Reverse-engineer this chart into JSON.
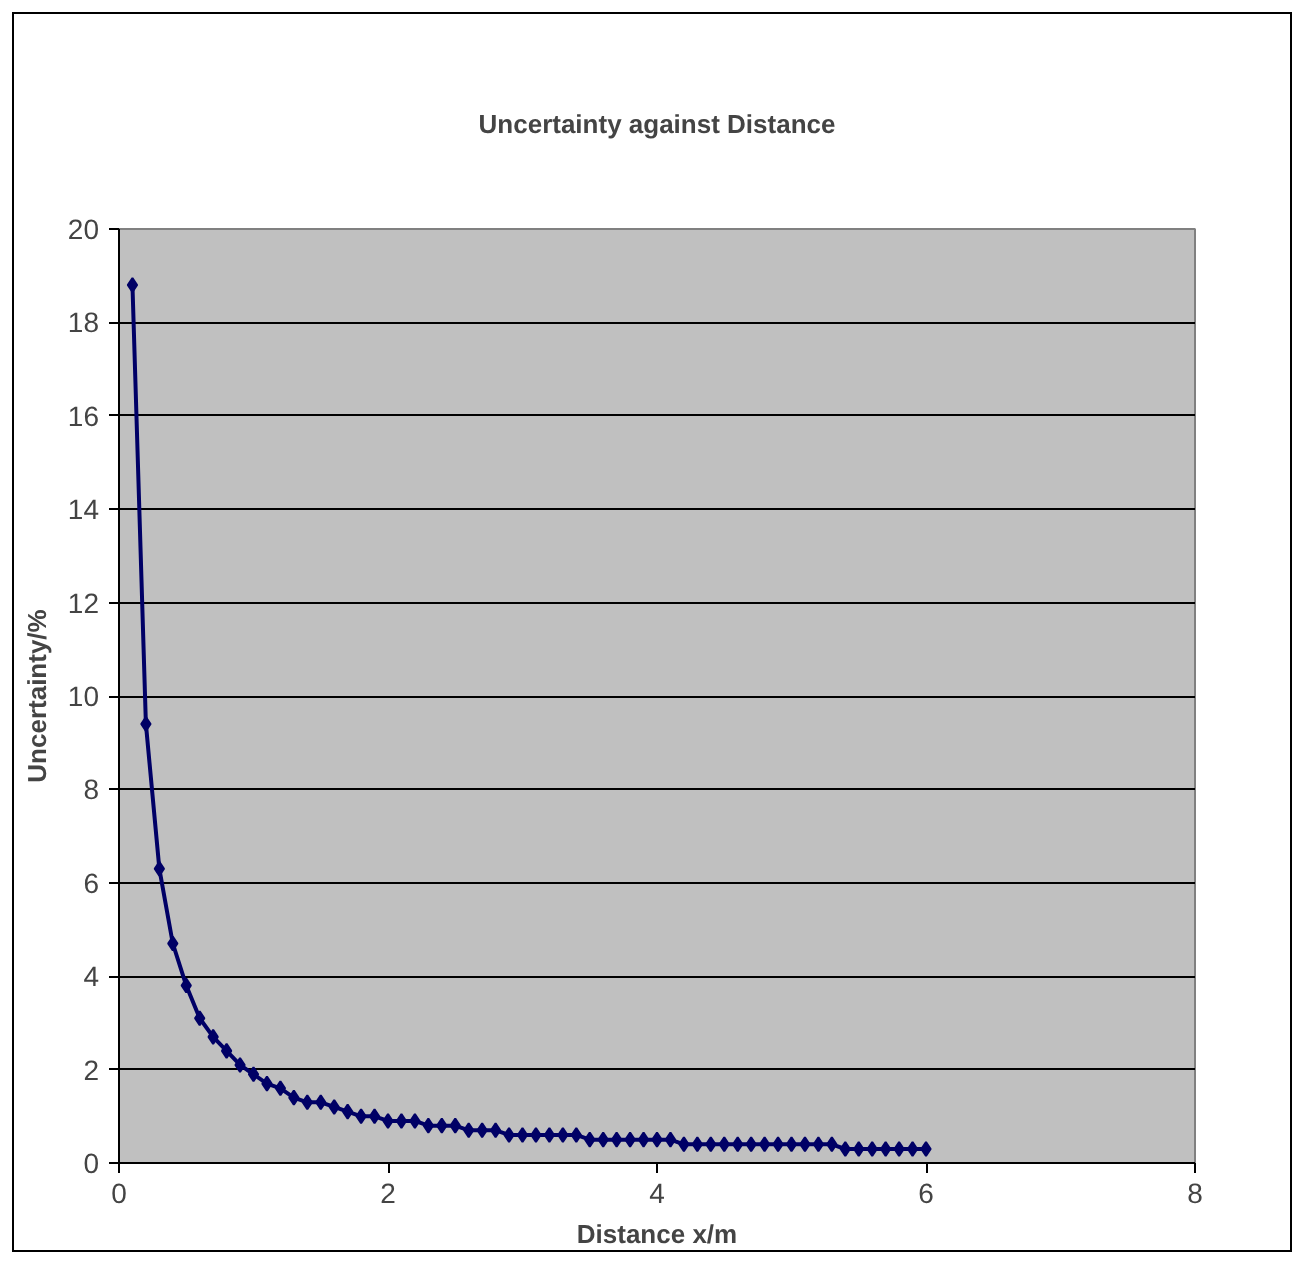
{
  "chart_data": {
    "type": "line",
    "title": "Uncertainty against Distance",
    "xlabel": "Distance x/m",
    "ylabel": "Uncertainty/%",
    "x": [
      0.1,
      0.2,
      0.3,
      0.4,
      0.5,
      0.6,
      0.7,
      0.8,
      0.9,
      1.0,
      1.1,
      1.2,
      1.3,
      1.4,
      1.5,
      1.6,
      1.7,
      1.8,
      1.9,
      2.0,
      2.1,
      2.2,
      2.3,
      2.4,
      2.5,
      2.6,
      2.7,
      2.8,
      2.9,
      3.0,
      3.1,
      3.2,
      3.3,
      3.4,
      3.5,
      3.6,
      3.7,
      3.8,
      3.9,
      4.0,
      4.1,
      4.2,
      4.3,
      4.4,
      4.5,
      4.6,
      4.7,
      4.8,
      4.9,
      5.0,
      5.1,
      5.2,
      5.3,
      5.4,
      5.5,
      5.6,
      5.7,
      5.8,
      5.9,
      6.0
    ],
    "series": [
      {
        "color": "#000066",
        "values": [
          18.8,
          9.4,
          6.3,
          4.7,
          3.8,
          3.1,
          2.7,
          2.4,
          2.1,
          1.9,
          1.7,
          1.6,
          1.4,
          1.3,
          1.3,
          1.2,
          1.1,
          1.0,
          1.0,
          0.9,
          0.9,
          0.9,
          0.8,
          0.8,
          0.8,
          0.7,
          0.7,
          0.7,
          0.6,
          0.6,
          0.6,
          0.6,
          0.6,
          0.6,
          0.5,
          0.5,
          0.5,
          0.5,
          0.5,
          0.5,
          0.5,
          0.4,
          0.4,
          0.4,
          0.4,
          0.4,
          0.4,
          0.4,
          0.4,
          0.4,
          0.4,
          0.4,
          0.4,
          0.3,
          0.3,
          0.3,
          0.3,
          0.3,
          0.3,
          0.3
        ]
      }
    ],
    "xlim": [
      0,
      8
    ],
    "xticks": [
      0,
      2,
      4,
      6,
      8
    ],
    "ylim": [
      0,
      20
    ],
    "yticks": [
      0,
      2,
      4,
      6,
      8,
      10,
      12,
      14,
      16,
      18,
      20
    ],
    "grid": "y",
    "marker": "diamond",
    "line_style": "solid"
  }
}
